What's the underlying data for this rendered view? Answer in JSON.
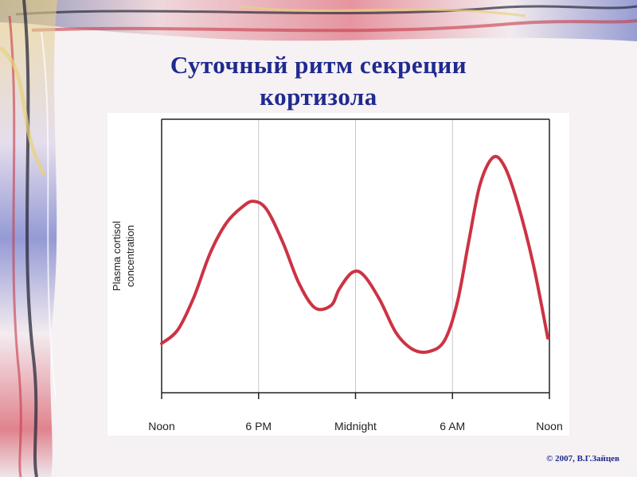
{
  "slide": {
    "title_line1": "Суточный ритм секреции",
    "title_line2": "кортизола",
    "copyright": "© 2007, В.Г.Зайцев"
  },
  "colors": {
    "title": "#1f2a8f",
    "curve": "#cc3344",
    "grid": "#c8c8c8",
    "frame": "#222222"
  },
  "chart_data": {
    "type": "line",
    "title": "",
    "xlabel": "",
    "ylabel": "Plasma cortisol concentration",
    "ylabel_lines": [
      "Plasma cortisol",
      "concentration"
    ],
    "xlim": [
      12,
      36
    ],
    "ylim": [
      0,
      100
    ],
    "y_ticks_shown": false,
    "grid": "vertical",
    "x_ticks": [
      12,
      18,
      24,
      30,
      36
    ],
    "x_tick_labels": [
      "Noon",
      "6 PM",
      "Midnight",
      "6 AM",
      "Noon"
    ],
    "series": [
      {
        "name": "",
        "points": [
          [
            12.0,
            18
          ],
          [
            13.0,
            23
          ],
          [
            14.0,
            35
          ],
          [
            15.0,
            51
          ],
          [
            16.0,
            62
          ],
          [
            17.0,
            68
          ],
          [
            17.7,
            70
          ],
          [
            18.5,
            67
          ],
          [
            19.5,
            55
          ],
          [
            20.5,
            40
          ],
          [
            21.5,
            31
          ],
          [
            22.5,
            32
          ],
          [
            23.0,
            38
          ],
          [
            23.8,
            44
          ],
          [
            24.5,
            43
          ],
          [
            25.5,
            34
          ],
          [
            26.5,
            22
          ],
          [
            27.5,
            16
          ],
          [
            28.5,
            15
          ],
          [
            29.5,
            19
          ],
          [
            30.3,
            33
          ],
          [
            31.0,
            55
          ],
          [
            31.7,
            76
          ],
          [
            32.5,
            86
          ],
          [
            33.2,
            83
          ],
          [
            34.0,
            70
          ],
          [
            35.0,
            47
          ],
          [
            35.9,
            20
          ]
        ]
      }
    ]
  }
}
